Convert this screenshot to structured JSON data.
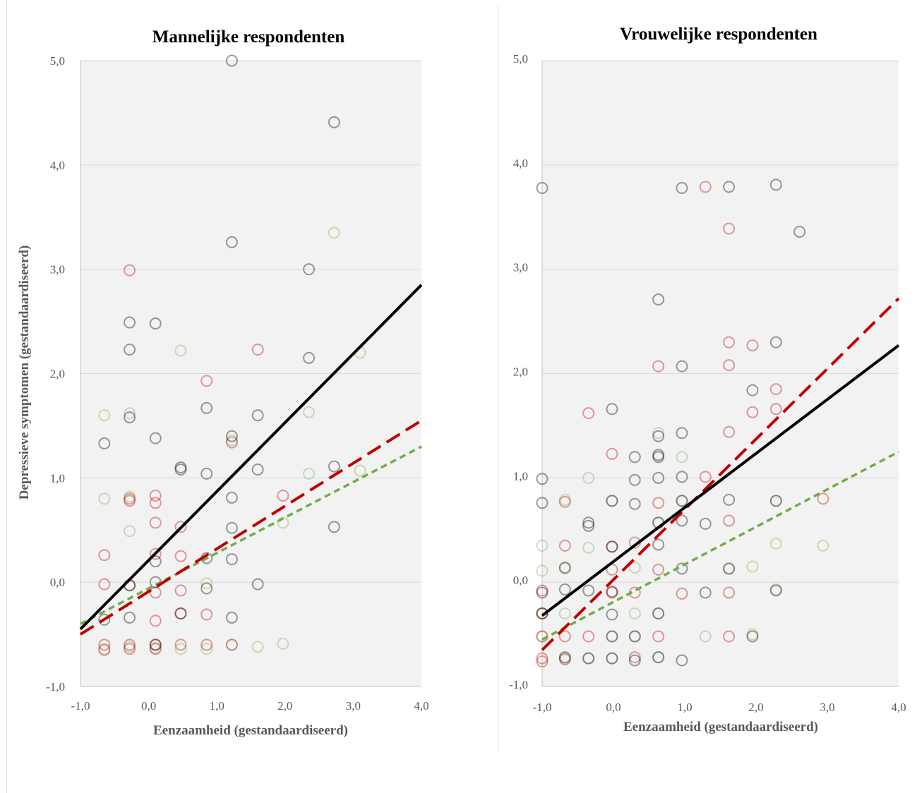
{
  "chart_data": [
    {
      "type": "scatter",
      "title": "Mannelijke respondenten",
      "xlabel": "Eenzaamheid  (gestandaardiseerd)",
      "ylabel": "Depressieve symptomen (gestandaardiseerd)",
      "xlim": [
        -1,
        4
      ],
      "ylim": [
        -1,
        5
      ],
      "xticks": [
        "-1,0",
        "0,0",
        "1,0",
        "2,0",
        "3,0",
        "4,0"
      ],
      "yticks": [
        "-1,0",
        "0,0",
        "1,0",
        "2,0",
        "3,0",
        "4,0",
        "5,0"
      ],
      "grid": "horizontal",
      "colors": {
        "black": "#000000",
        "red": "#c00000",
        "green": "#70ad47",
        "plot_bg": "#f2f2f2",
        "grid": "#d9d9d9"
      },
      "series": [
        {
          "color": "black",
          "line_style": "solid",
          "fit": {
            "x": [
              -1,
              4
            ],
            "y": [
              -0.45,
              2.85
            ]
          },
          "points": [
            [
              -0.65,
              1.33
            ],
            [
              -0.65,
              -0.36
            ],
            [
              -0.28,
              2.49
            ],
            [
              -0.28,
              2.23
            ],
            [
              -0.28,
              1.58
            ],
            [
              -0.28,
              -0.34
            ],
            [
              -0.28,
              -0.03
            ],
            [
              0.1,
              2.48
            ],
            [
              0.1,
              1.38
            ],
            [
              0.1,
              0.2
            ],
            [
              0.1,
              0.0
            ],
            [
              0.1,
              -0.6
            ],
            [
              0.47,
              1.1
            ],
            [
              0.47,
              1.08
            ],
            [
              0.47,
              -0.3
            ],
            [
              0.85,
              1.67
            ],
            [
              0.85,
              1.04
            ],
            [
              0.85,
              -0.06
            ],
            [
              0.85,
              0.23
            ],
            [
              1.22,
              5.0
            ],
            [
              1.22,
              3.26
            ],
            [
              1.22,
              1.4
            ],
            [
              1.22,
              0.81
            ],
            [
              1.22,
              0.52
            ],
            [
              1.22,
              0.22
            ],
            [
              1.22,
              -0.34
            ],
            [
              1.6,
              1.6
            ],
            [
              1.6,
              1.08
            ],
            [
              1.6,
              -0.02
            ],
            [
              2.35,
              3.0
            ],
            [
              2.35,
              2.15
            ],
            [
              2.72,
              4.41
            ],
            [
              2.72,
              1.11
            ],
            [
              2.72,
              0.53
            ]
          ]
        },
        {
          "color": "red",
          "line_style": "long-dash",
          "fit": {
            "x": [
              -1,
              4
            ],
            "y": [
              -0.5,
              1.55
            ]
          },
          "points": [
            [
              -0.65,
              0.26
            ],
            [
              -0.65,
              -0.02
            ],
            [
              -0.65,
              -0.6
            ],
            [
              -0.65,
              -0.65
            ],
            [
              -0.28,
              2.99
            ],
            [
              -0.28,
              0.8
            ],
            [
              -0.28,
              0.78
            ],
            [
              -0.28,
              -0.03
            ],
            [
              -0.28,
              -0.6
            ],
            [
              -0.28,
              -0.64
            ],
            [
              0.1,
              0.83
            ],
            [
              0.1,
              0.76
            ],
            [
              0.1,
              0.57
            ],
            [
              0.1,
              0.27
            ],
            [
              0.1,
              -0.1
            ],
            [
              0.1,
              -0.37
            ],
            [
              0.1,
              -0.6
            ],
            [
              0.1,
              -0.64
            ],
            [
              0.47,
              0.53
            ],
            [
              0.47,
              0.25
            ],
            [
              0.47,
              -0.08
            ],
            [
              0.47,
              -0.3
            ],
            [
              0.47,
              -0.6
            ],
            [
              0.85,
              1.93
            ],
            [
              0.85,
              -0.31
            ],
            [
              0.85,
              -0.6
            ],
            [
              1.22,
              1.34
            ],
            [
              1.22,
              -0.6
            ],
            [
              1.6,
              2.23
            ],
            [
              1.97,
              0.83
            ]
          ]
        },
        {
          "color": "green",
          "line_style": "short-dash",
          "fit": {
            "x": [
              -1,
              4
            ],
            "y": [
              -0.4,
              1.3
            ]
          },
          "points": [
            [
              -0.65,
              1.6
            ],
            [
              -0.65,
              0.8
            ],
            [
              -0.65,
              -0.64
            ],
            [
              -0.28,
              1.62
            ],
            [
              -0.28,
              0.82
            ],
            [
              -0.28,
              0.49
            ],
            [
              -0.28,
              -0.62
            ],
            [
              0.1,
              -0.63
            ],
            [
              0.47,
              2.22
            ],
            [
              0.47,
              -0.64
            ],
            [
              0.85,
              -0.01
            ],
            [
              0.85,
              -0.64
            ],
            [
              1.22,
              1.36
            ],
            [
              1.22,
              -0.6
            ],
            [
              1.6,
              -0.62
            ],
            [
              1.97,
              0.57
            ],
            [
              1.97,
              -0.59
            ],
            [
              2.35,
              1.63
            ],
            [
              2.35,
              1.04
            ],
            [
              2.72,
              3.35
            ],
            [
              3.1,
              2.2
            ],
            [
              3.1,
              1.07
            ]
          ]
        }
      ]
    },
    {
      "type": "scatter",
      "title": "Vrouwelijke respondenten",
      "xlabel": "Eenzaamheid  (gestandaardiseerd)",
      "ylabel": "",
      "xlim": [
        -1,
        4
      ],
      "ylim": [
        -1,
        5
      ],
      "xticks": [
        "-1,0",
        "0,0",
        "1,0",
        "2,0",
        "3,0",
        "4,0"
      ],
      "yticks": [
        "-1,0",
        "0,0",
        "1,0",
        "2,0",
        "3,0",
        "4,0",
        "5,0"
      ],
      "grid": "horizontal",
      "colors": {
        "black": "#000000",
        "red": "#c00000",
        "green": "#70ad47",
        "plot_bg": "#f2f2f2",
        "grid": "#d9d9d9"
      },
      "series": [
        {
          "color": "black",
          "line_style": "solid",
          "fit": {
            "x": [
              -1,
              4
            ],
            "y": [
              -0.32,
              2.27
            ]
          },
          "points": [
            [
              -1.0,
              3.78
            ],
            [
              -1.0,
              0.99
            ],
            [
              -1.0,
              0.76
            ],
            [
              -1.0,
              -0.1
            ],
            [
              -1.0,
              -0.3
            ],
            [
              -0.68,
              0.14
            ],
            [
              -0.68,
              -0.07
            ],
            [
              -0.68,
              -0.72
            ],
            [
              -0.35,
              0.57
            ],
            [
              -0.35,
              0.54
            ],
            [
              -0.35,
              -0.08
            ],
            [
              -0.35,
              -0.73
            ],
            [
              -0.02,
              1.66
            ],
            [
              -0.02,
              0.78
            ],
            [
              -0.02,
              0.34
            ],
            [
              -0.02,
              -0.09
            ],
            [
              -0.02,
              -0.31
            ],
            [
              -0.02,
              -0.52
            ],
            [
              -0.02,
              -0.73
            ],
            [
              0.3,
              1.2
            ],
            [
              0.3,
              0.98
            ],
            [
              0.3,
              0.75
            ],
            [
              0.3,
              -0.52
            ],
            [
              0.3,
              -0.75
            ],
            [
              0.63,
              2.71
            ],
            [
              0.63,
              1.4
            ],
            [
              0.63,
              1.22
            ],
            [
              0.63,
              1.2
            ],
            [
              0.63,
              1.0
            ],
            [
              0.63,
              0.57
            ],
            [
              0.63,
              0.36
            ],
            [
              0.63,
              -0.3
            ],
            [
              0.63,
              -0.72
            ],
            [
              0.96,
              3.78
            ],
            [
              0.96,
              2.07
            ],
            [
              0.96,
              1.43
            ],
            [
              0.96,
              1.01
            ],
            [
              0.96,
              0.78
            ],
            [
              0.96,
              0.59
            ],
            [
              0.96,
              0.13
            ],
            [
              0.96,
              -0.75
            ],
            [
              1.29,
              0.56
            ],
            [
              1.29,
              -0.1
            ],
            [
              1.62,
              3.79
            ],
            [
              1.62,
              0.79
            ],
            [
              1.62,
              0.13
            ],
            [
              1.95,
              1.84
            ],
            [
              1.95,
              -0.52
            ],
            [
              2.28,
              3.81
            ],
            [
              2.28,
              2.3
            ],
            [
              2.28,
              0.78
            ],
            [
              2.28,
              -0.08
            ],
            [
              2.61,
              3.36
            ]
          ]
        },
        {
          "color": "red",
          "line_style": "long-dash",
          "fit": {
            "x": [
              -1,
              4
            ],
            "y": [
              -0.65,
              2.72
            ]
          },
          "points": [
            [
              -1.0,
              -0.08
            ],
            [
              -1.0,
              -0.3
            ],
            [
              -1.0,
              -0.52
            ],
            [
              -1.0,
              -0.73
            ],
            [
              -1.0,
              -0.76
            ],
            [
              -0.68,
              0.77
            ],
            [
              -0.68,
              0.35
            ],
            [
              -0.68,
              -0.52
            ],
            [
              -0.68,
              -0.74
            ],
            [
              -0.35,
              1.62
            ],
            [
              -0.35,
              -0.52
            ],
            [
              -0.02,
              1.23
            ],
            [
              -0.02,
              0.34
            ],
            [
              -0.02,
              0.12
            ],
            [
              -0.02,
              -0.1
            ],
            [
              0.3,
              0.38
            ],
            [
              0.3,
              -0.1
            ],
            [
              0.3,
              -0.72
            ],
            [
              0.63,
              2.07
            ],
            [
              0.63,
              0.76
            ],
            [
              0.63,
              0.12
            ],
            [
              0.63,
              -0.52
            ],
            [
              0.96,
              -0.11
            ],
            [
              1.29,
              3.79
            ],
            [
              1.29,
              1.01
            ],
            [
              1.62,
              3.39
            ],
            [
              1.62,
              2.3
            ],
            [
              1.62,
              2.08
            ],
            [
              1.62,
              1.44
            ],
            [
              1.62,
              0.59
            ],
            [
              1.62,
              -0.1
            ],
            [
              1.62,
              -0.52
            ],
            [
              1.95,
              2.27
            ],
            [
              1.95,
              1.63
            ],
            [
              2.28,
              1.85
            ],
            [
              2.28,
              1.66
            ],
            [
              2.94,
              0.8
            ]
          ]
        },
        {
          "color": "green",
          "line_style": "short-dash",
          "fit": {
            "x": [
              -1,
              4
            ],
            "y": [
              -0.55,
              1.25
            ]
          },
          "points": [
            [
              -1.0,
              0.35
            ],
            [
              -1.0,
              0.11
            ],
            [
              -1.0,
              -0.3
            ],
            [
              -1.0,
              -0.52
            ],
            [
              -0.68,
              0.79
            ],
            [
              -0.68,
              0.13
            ],
            [
              -0.68,
              -0.3
            ],
            [
              -0.68,
              -0.73
            ],
            [
              -0.35,
              1.0
            ],
            [
              -0.35,
              0.33
            ],
            [
              -0.35,
              -0.73
            ],
            [
              -0.02,
              0.78
            ],
            [
              -0.02,
              -0.52
            ],
            [
              -0.02,
              -0.73
            ],
            [
              0.3,
              0.14
            ],
            [
              0.3,
              -0.3
            ],
            [
              0.3,
              -0.52
            ],
            [
              0.63,
              1.43
            ],
            [
              0.63,
              0.57
            ],
            [
              0.63,
              -0.3
            ],
            [
              0.63,
              -0.72
            ],
            [
              0.96,
              1.2
            ],
            [
              0.96,
              0.78
            ],
            [
              1.29,
              -0.52
            ],
            [
              1.62,
              0.13
            ],
            [
              1.95,
              0.15
            ],
            [
              1.95,
              -0.5
            ],
            [
              2.28,
              0.78
            ],
            [
              2.28,
              0.37
            ],
            [
              2.28,
              -0.07
            ],
            [
              2.94,
              0.35
            ]
          ]
        }
      ]
    }
  ]
}
